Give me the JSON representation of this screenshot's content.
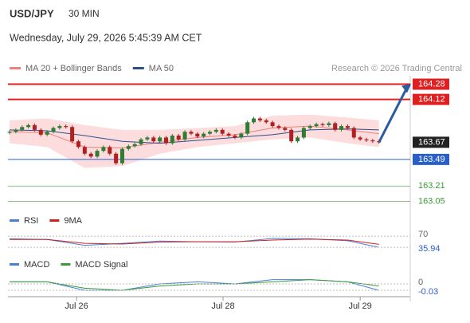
{
  "header": {
    "symbol": "USD/JPY",
    "interval": "30 MIN",
    "datetime": "Wednesday, July 29, 2026 5:45:39 AM CET"
  },
  "chart_data": [
    {
      "type": "candlestick",
      "source": "Research © 2026 Trading Central",
      "legend": [
        {
          "name": "MA 20 + Bollinger Bands",
          "color": "#f08080"
        },
        {
          "name": "MA 50",
          "color": "#2c4f8c"
        }
      ],
      "ylim": [
        162.97,
        164.41
      ],
      "xlim": [
        0,
        64
      ],
      "xticks": [
        {
          "value": 10.7,
          "label": "Jul 26"
        },
        {
          "value": 34.1,
          "label": "Jul 28"
        },
        {
          "value": 56,
          "label": "Jul 29"
        }
      ],
      "closes": [
        163.78,
        163.8,
        163.83,
        163.85,
        163.8,
        163.75,
        163.78,
        163.82,
        163.84,
        163.83,
        163.68,
        163.62,
        163.55,
        163.52,
        163.58,
        163.62,
        163.55,
        163.45,
        163.6,
        163.63,
        163.65,
        163.7,
        163.72,
        163.68,
        163.72,
        163.66,
        163.74,
        163.7,
        163.78,
        163.76,
        163.73,
        163.76,
        163.78,
        163.8,
        163.76,
        163.74,
        163.72,
        163.76,
        163.88,
        163.92,
        163.9,
        163.88,
        163.84,
        163.82,
        163.8,
        163.68,
        163.72,
        163.82,
        163.84,
        163.86,
        163.85,
        163.87,
        163.8,
        163.84,
        163.82,
        163.72,
        163.7,
        163.69,
        163.68,
        163.67
      ],
      "band_x": [
        0,
        6,
        12,
        18,
        24,
        30,
        36,
        42,
        48,
        54,
        59
      ],
      "upper": [
        163.9,
        163.92,
        163.85,
        163.8,
        163.8,
        163.82,
        163.84,
        163.95,
        163.96,
        163.93,
        163.9
      ],
      "lower": [
        163.66,
        163.62,
        163.4,
        163.42,
        163.55,
        163.62,
        163.66,
        163.7,
        163.72,
        163.66,
        163.62
      ],
      "ma20": [
        163.78,
        163.77,
        163.62,
        163.61,
        163.67,
        163.72,
        163.75,
        163.82,
        163.84,
        163.8,
        163.76
      ],
      "ma50": [
        163.8,
        163.79,
        163.74,
        163.68,
        163.66,
        163.69,
        163.72,
        163.75,
        163.8,
        163.81,
        163.8
      ],
      "levels": [
        {
          "value": 164.28,
          "color": "#e02020",
          "style": "box"
        },
        {
          "value": 164.12,
          "color": "#e02020",
          "style": "box"
        },
        {
          "value": 163.67,
          "color": "#222222",
          "style": "current"
        },
        {
          "value": 163.49,
          "color": "#2a5fc8",
          "style": "box"
        },
        {
          "value": 163.21,
          "color": "#3a9a3a",
          "style": "text"
        },
        {
          "value": 163.05,
          "color": "#3a9a3a",
          "style": "text"
        }
      ]
    },
    {
      "type": "line",
      "ylim": [
        12,
        97
      ],
      "x": [
        0,
        6,
        12,
        18,
        24,
        30,
        36,
        42,
        48,
        54,
        59
      ],
      "series": [
        {
          "name": "RSI",
          "color": "#4a7fd8",
          "values": [
            62,
            60,
            42,
            48,
            55,
            53,
            52,
            63,
            62,
            56,
            36
          ]
        },
        {
          "name": "9MA",
          "color": "#d02020",
          "values": [
            60,
            60,
            48,
            46,
            52,
            53,
            53,
            58,
            61,
            58,
            45
          ]
        }
      ],
      "levels": [
        70,
        35.94
      ]
    },
    {
      "type": "line",
      "ylim": [
        -0.06,
        0.06
      ],
      "x": [
        0,
        6,
        12,
        18,
        24,
        30,
        36,
        42,
        48,
        54,
        59
      ],
      "series": [
        {
          "name": "MACD",
          "color": "#4a7fd8",
          "values": [
            0.01,
            0.01,
            -0.03,
            -0.03,
            0,
            0.01,
            0,
            0.02,
            0.02,
            0.01,
            -0.03
          ]
        },
        {
          "name": "MACD Signal",
          "color": "#3a9a3a",
          "values": [
            0.01,
            0.01,
            -0.02,
            -0.03,
            -0.01,
            0,
            0,
            0.01,
            0.02,
            0.01,
            -0.01
          ]
        }
      ],
      "levels": [
        0,
        -0.03
      ]
    }
  ]
}
